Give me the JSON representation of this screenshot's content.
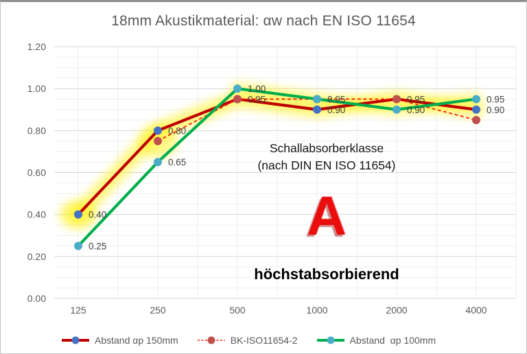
{
  "chart_data": {
    "type": "line",
    "title": "18mm Akustikmaterial: αw nach EN ISO 11654",
    "categories": [
      "125",
      "250",
      "500",
      "1000",
      "2000",
      "4000"
    ],
    "y_ticks": [
      "1.20",
      "1.00",
      "0.80",
      "0.60",
      "0.40",
      "0.20",
      "0.00"
    ],
    "ylim": [
      0,
      1.2
    ],
    "grid": "horizontal major every 0.20, minor every 0.05, light vertical category lines",
    "legend_position": "bottom",
    "highlight_color": "#FFF000",
    "label_color": "#3F3F3F",
    "axis_text_color": "#595959",
    "series": [
      {
        "name": "Abstand αp 150mm",
        "values": [
          0.4,
          0.8,
          0.95,
          0.9,
          0.95,
          0.9
        ],
        "line_color": "#BE0000",
        "marker_color": "#4472C4",
        "style": "solid"
      },
      {
        "name": "BK-ISO11654-2",
        "values": [
          null,
          0.75,
          0.95,
          0.95,
          0.95,
          0.85
        ],
        "line_color": "#FF1D00",
        "marker_color": "#C0504D",
        "style": "dashed"
      },
      {
        "name": "Abstand  αp 100mm",
        "values": [
          0.25,
          0.65,
          1.0,
          0.95,
          0.9,
          0.95
        ],
        "line_color": "#00AE4D",
        "marker_color": "#4BACC6",
        "style": "solid"
      }
    ],
    "data_labels": [
      {
        "i": 0,
        "v": 0.4
      },
      {
        "i": 0,
        "v": 0.25
      },
      {
        "i": 1,
        "v": 0.8
      },
      {
        "i": 1,
        "v": 0.65
      },
      {
        "i": 2,
        "v": 1.0
      },
      {
        "i": 2,
        "v": 0.95
      },
      {
        "i": 3,
        "v": 0.95
      },
      {
        "i": 3,
        "v": 0.9
      },
      {
        "i": 4,
        "v": 0.95
      },
      {
        "i": 4,
        "v": 0.9
      },
      {
        "i": 5,
        "v": 0.95
      },
      {
        "i": 5,
        "v": 0.9
      }
    ]
  },
  "annotations": {
    "class_line1": "Schallabsorberklasse",
    "class_line2": "(nach DIN EN ISO 11654)",
    "class_letter": "A",
    "class_desc": "höchstabsorbierend"
  }
}
